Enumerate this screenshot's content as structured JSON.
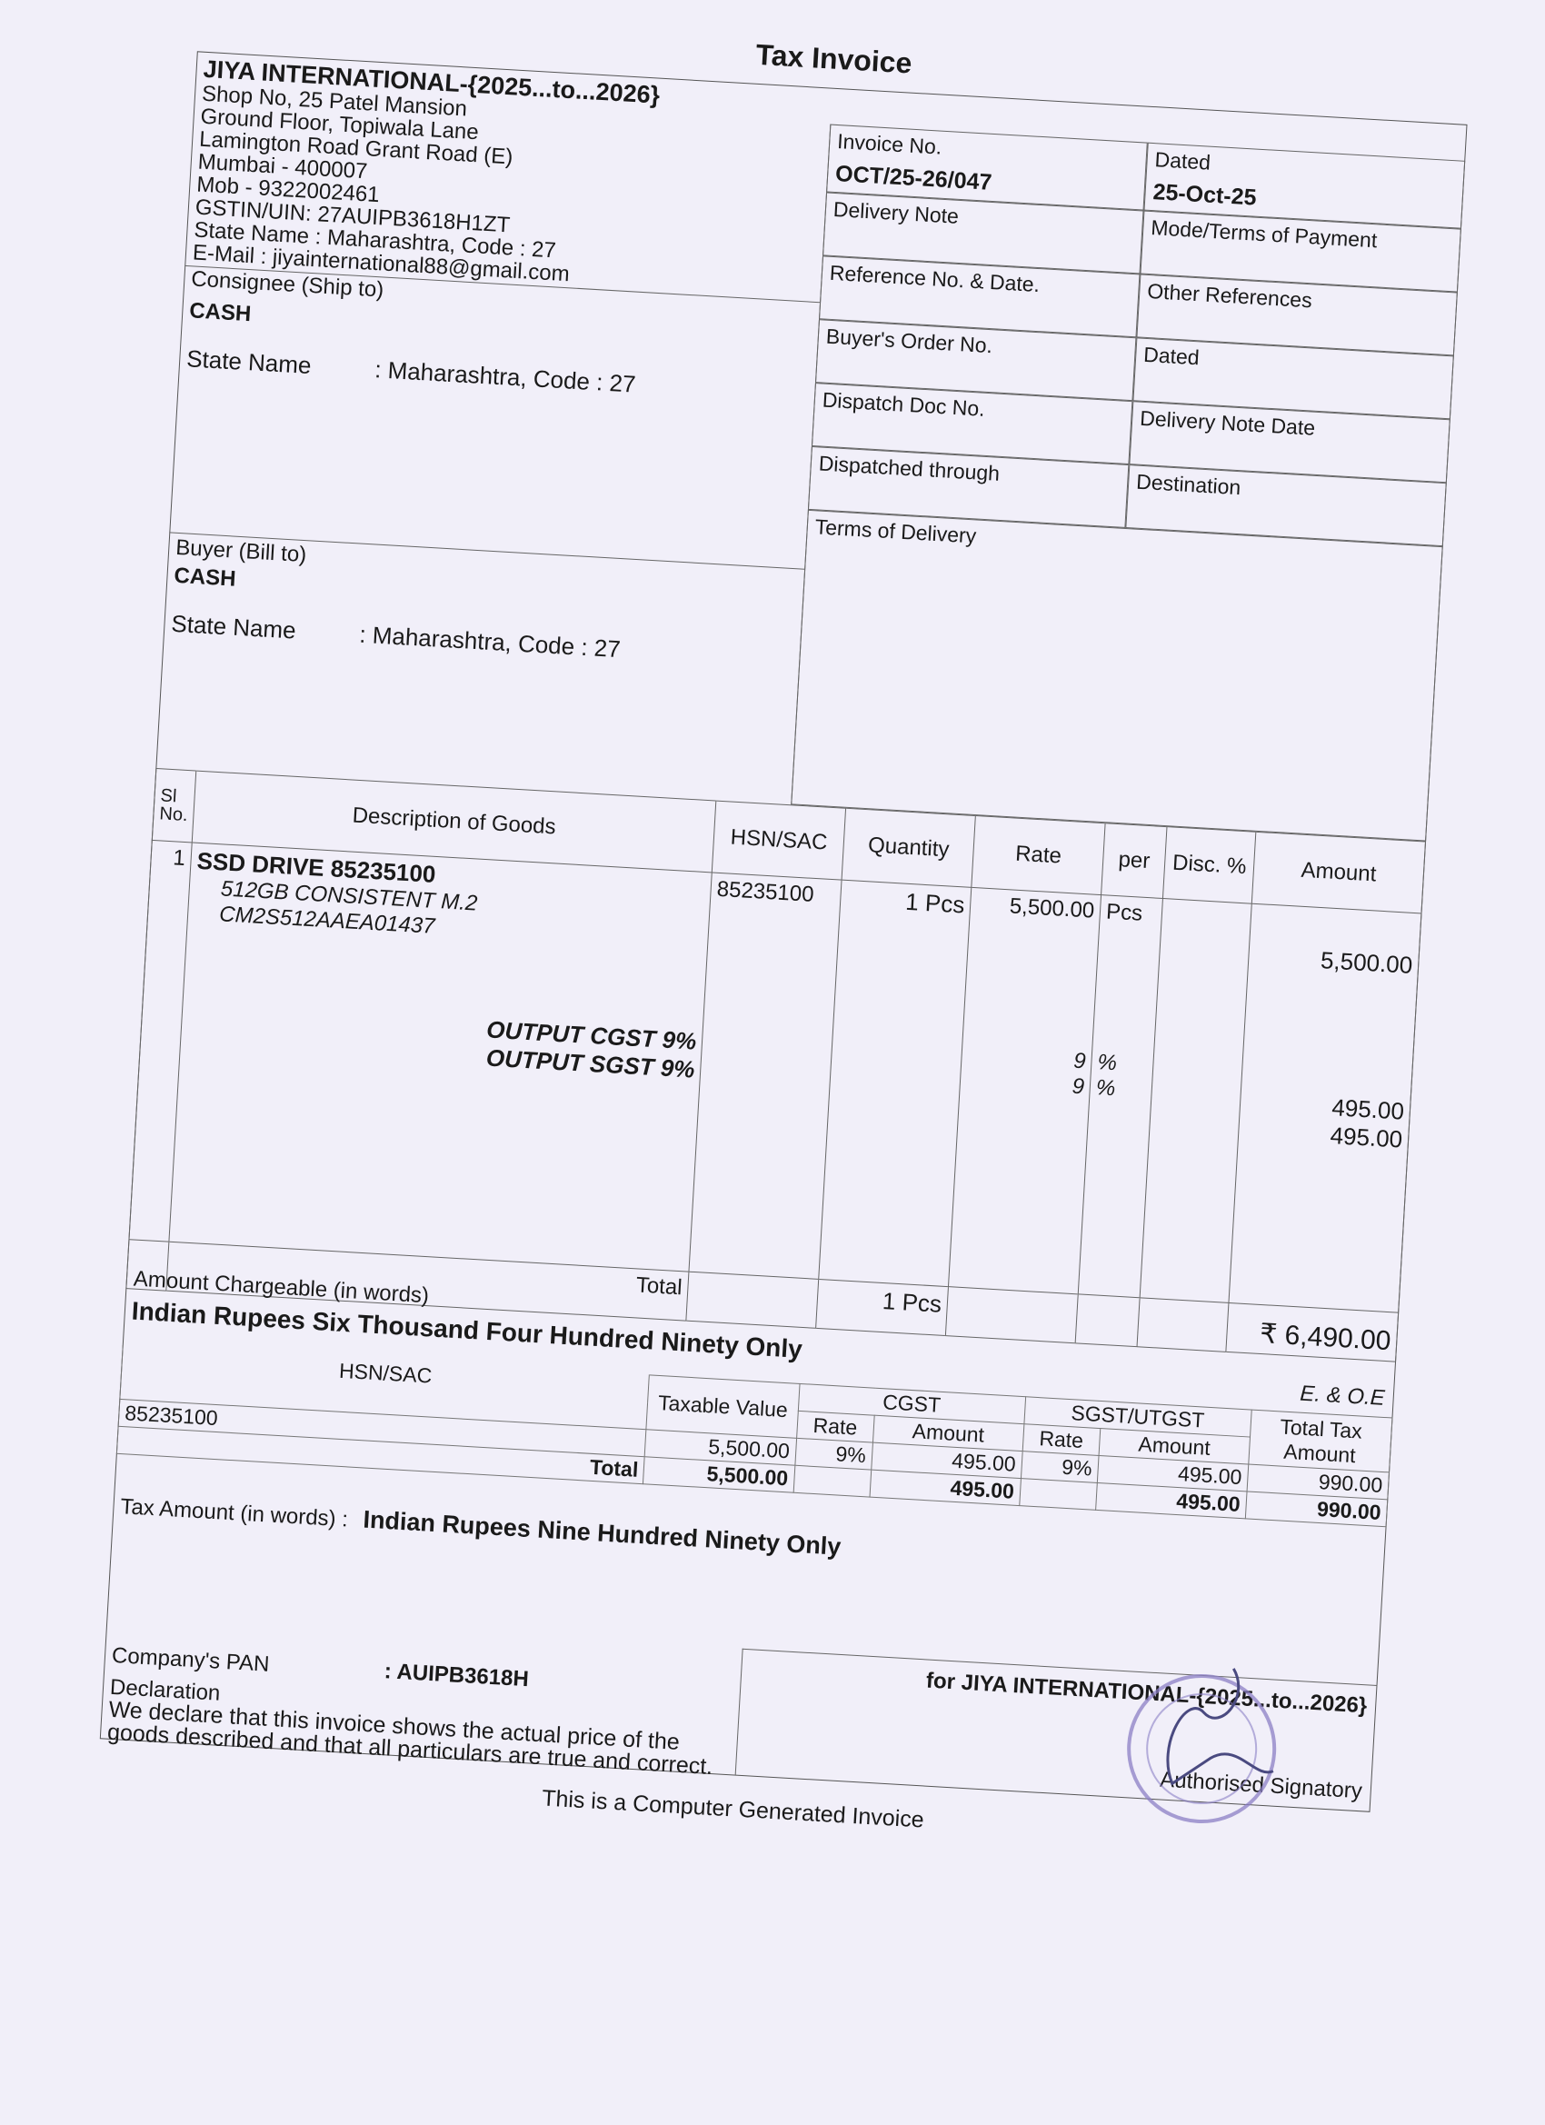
{
  "title": "Tax Invoice",
  "seller": {
    "name": "JIYA INTERNATIONAL-{2025...to...2026}",
    "lines": [
      "Shop No, 25 Patel Mansion",
      "Ground Floor, Topiwala Lane",
      "Lamington Road Grant Road (E)",
      "Mumbai - 400007",
      "Mob - 9322002461",
      "GSTIN/UIN: 27AUIPB3618H1ZT",
      "State Name :  Maharashtra, Code : 27",
      "E-Mail : jiyainternational88@gmail.com"
    ]
  },
  "consignee": {
    "label": "Consignee (Ship to)",
    "name": "CASH",
    "state_label": "State Name",
    "state_value": ":  Maharashtra, Code : 27"
  },
  "buyer": {
    "label": "Buyer (Bill to)",
    "name": "CASH",
    "state_label": "State Name",
    "state_value": ":  Maharashtra, Code : 27"
  },
  "meta": {
    "invoice_no_label": "Invoice No.",
    "invoice_no": "OCT/25-26/047",
    "dated_label": "Dated",
    "dated": "25-Oct-25",
    "delivery_note": "Delivery Note",
    "mode_terms": "Mode/Terms of Payment",
    "reference": "Reference No. & Date.",
    "other_refs": "Other References",
    "buyers_order": "Buyer's Order No.",
    "dated2": "Dated",
    "dispatch_doc": "Dispatch Doc No.",
    "delivery_note_date": "Delivery Note Date",
    "dispatched_through": "Dispatched through",
    "destination": "Destination",
    "terms_delivery": "Terms of Delivery"
  },
  "goods": {
    "headers": {
      "sl": "Sl",
      "no": "No.",
      "desc": "Description of Goods",
      "hsn": "HSN/SAC",
      "qty": "Quantity",
      "rate": "Rate",
      "per": "per",
      "disc": "Disc. %",
      "amount": "Amount"
    },
    "item": {
      "sl": "1",
      "name": "SSD DRIVE  85235100",
      "desc1": "512GB CONSISTENT M.2",
      "desc2": "CM2S512AAEA01437",
      "hsn": "85235100",
      "qty": "1 Pcs",
      "rate": "5,500.00",
      "per": "Pcs",
      "amount": "5,500.00"
    },
    "taxes": [
      {
        "name": "OUTPUT CGST 9%",
        "rate": "9",
        "pct": "%",
        "amount": "495.00"
      },
      {
        "name": "OUTPUT SGST 9%",
        "rate": "9",
        "pct": "%",
        "amount": "495.00"
      }
    ],
    "total_label": "Total",
    "total_qty": "1 Pcs",
    "total_amount": "₹ 6,490.00"
  },
  "amount_words": {
    "label": "Amount Chargeable (in words)",
    "value": "Indian Rupees Six Thousand Four Hundred Ninety Only",
    "eoe": "E. & O.E"
  },
  "tax_table": {
    "h_hsn": "HSN/SAC",
    "h_taxable": "Taxable Value",
    "h_cgst": "CGST",
    "h_sgst": "SGST/UTGST",
    "h_rate": "Rate",
    "h_amount": "Amount",
    "h_total": "Total Tax Amount",
    "row": {
      "hsn": "85235100",
      "taxable": "5,500.00",
      "c_rate": "9%",
      "c_amt": "495.00",
      "s_rate": "9%",
      "s_amt": "495.00",
      "total": "990.00"
    },
    "total": {
      "label": "Total",
      "taxable": "5,500.00",
      "c_amt": "495.00",
      "s_amt": "495.00",
      "total": "990.00"
    }
  },
  "tax_words": {
    "label": "Tax Amount (in words)  :",
    "value": "Indian Rupees Nine Hundred Ninety Only"
  },
  "pan": {
    "label": "Company's PAN",
    "value": ":   AUIPB3618H"
  },
  "declaration": {
    "label": "Declaration",
    "text1": "We declare that this invoice shows the actual price of the",
    "text2": "goods described and that all particulars are true and correct."
  },
  "signatory": {
    "for": "for JIYA INTERNATIONAL-{2025...to...2026}",
    "label": "Authorised Signatory"
  },
  "footer": "This is a Computer Generated Invoice",
  "colors": {
    "paper": "#f1eff9",
    "stamp": "#8b7fc4"
  }
}
